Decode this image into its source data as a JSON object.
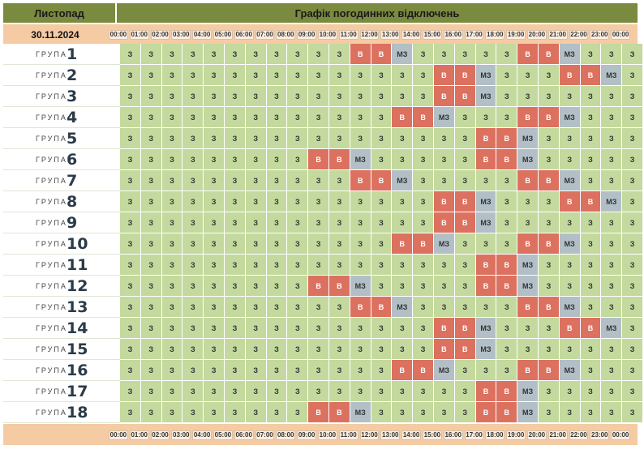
{
  "header": {
    "month": "Листопад",
    "title": "Графік погодинних відключень",
    "date": "30.11.2024"
  },
  "hours": [
    "00:00",
    "01:00",
    "02:00",
    "03:00",
    "04:00",
    "05:00",
    "06:00",
    "07:00",
    "08:00",
    "09:00",
    "10:00",
    "11:00",
    "12:00",
    "13:00",
    "14:00",
    "15:00",
    "16:00",
    "17:00",
    "18:00",
    "19:00",
    "20:00",
    "21:00",
    "22:00",
    "23:00",
    "00:00"
  ],
  "group_word": "ГРУПА",
  "legend_codes": {
    "on": "З",
    "off": "В",
    "maybe": "МЗ"
  },
  "colors": {
    "on": "#c4d99e",
    "off": "#dc7160",
    "maybe": "#b2bfc6",
    "header": "#7a8a3f",
    "band": "#f5cba3"
  },
  "groups": [
    {
      "number": "1",
      "hours": [
        "З",
        "З",
        "З",
        "З",
        "З",
        "З",
        "З",
        "З",
        "З",
        "З",
        "З",
        "В",
        "В",
        "МЗ",
        "З",
        "З",
        "З",
        "З",
        "З",
        "В",
        "В",
        "МЗ",
        "З",
        "З",
        "З"
      ]
    },
    {
      "number": "2",
      "hours": [
        "З",
        "З",
        "З",
        "З",
        "З",
        "З",
        "З",
        "З",
        "З",
        "З",
        "З",
        "З",
        "З",
        "З",
        "З",
        "В",
        "В",
        "МЗ",
        "З",
        "З",
        "З",
        "В",
        "В",
        "МЗ",
        "З"
      ]
    },
    {
      "number": "3",
      "hours": [
        "З",
        "З",
        "З",
        "З",
        "З",
        "З",
        "З",
        "З",
        "З",
        "З",
        "З",
        "З",
        "З",
        "З",
        "З",
        "В",
        "В",
        "МЗ",
        "З",
        "З",
        "З",
        "З",
        "З",
        "З",
        "З"
      ]
    },
    {
      "number": "4",
      "hours": [
        "З",
        "З",
        "З",
        "З",
        "З",
        "З",
        "З",
        "З",
        "З",
        "З",
        "З",
        "З",
        "З",
        "В",
        "В",
        "МЗ",
        "З",
        "З",
        "З",
        "В",
        "В",
        "МЗ",
        "З",
        "З",
        "З"
      ]
    },
    {
      "number": "5",
      "hours": [
        "З",
        "З",
        "З",
        "З",
        "З",
        "З",
        "З",
        "З",
        "З",
        "З",
        "З",
        "З",
        "З",
        "З",
        "З",
        "З",
        "З",
        "В",
        "В",
        "МЗ",
        "З",
        "З",
        "З",
        "З",
        "З"
      ]
    },
    {
      "number": "6",
      "hours": [
        "З",
        "З",
        "З",
        "З",
        "З",
        "З",
        "З",
        "З",
        "З",
        "В",
        "В",
        "МЗ",
        "З",
        "З",
        "З",
        "З",
        "З",
        "В",
        "В",
        "МЗ",
        "З",
        "З",
        "З",
        "З",
        "З"
      ]
    },
    {
      "number": "7",
      "hours": [
        "З",
        "З",
        "З",
        "З",
        "З",
        "З",
        "З",
        "З",
        "З",
        "З",
        "З",
        "В",
        "В",
        "МЗ",
        "З",
        "З",
        "З",
        "З",
        "З",
        "В",
        "В",
        "МЗ",
        "З",
        "З",
        "З"
      ]
    },
    {
      "number": "8",
      "hours": [
        "З",
        "З",
        "З",
        "З",
        "З",
        "З",
        "З",
        "З",
        "З",
        "З",
        "З",
        "З",
        "З",
        "З",
        "З",
        "В",
        "В",
        "МЗ",
        "З",
        "З",
        "З",
        "В",
        "В",
        "МЗ",
        "З"
      ]
    },
    {
      "number": "9",
      "hours": [
        "З",
        "З",
        "З",
        "З",
        "З",
        "З",
        "З",
        "З",
        "З",
        "З",
        "З",
        "З",
        "З",
        "З",
        "З",
        "В",
        "В",
        "МЗ",
        "З",
        "З",
        "З",
        "З",
        "З",
        "З",
        "З"
      ]
    },
    {
      "number": "10",
      "hours": [
        "З",
        "З",
        "З",
        "З",
        "З",
        "З",
        "З",
        "З",
        "З",
        "З",
        "З",
        "З",
        "З",
        "В",
        "В",
        "МЗ",
        "З",
        "З",
        "З",
        "В",
        "В",
        "МЗ",
        "З",
        "З",
        "З"
      ]
    },
    {
      "number": "11",
      "hours": [
        "З",
        "З",
        "З",
        "З",
        "З",
        "З",
        "З",
        "З",
        "З",
        "З",
        "З",
        "З",
        "З",
        "З",
        "З",
        "З",
        "З",
        "В",
        "В",
        "МЗ",
        "З",
        "З",
        "З",
        "З",
        "З"
      ]
    },
    {
      "number": "12",
      "hours": [
        "З",
        "З",
        "З",
        "З",
        "З",
        "З",
        "З",
        "З",
        "З",
        "В",
        "В",
        "МЗ",
        "З",
        "З",
        "З",
        "З",
        "З",
        "В",
        "В",
        "МЗ",
        "З",
        "З",
        "З",
        "З",
        "З"
      ]
    },
    {
      "number": "13",
      "hours": [
        "З",
        "З",
        "З",
        "З",
        "З",
        "З",
        "З",
        "З",
        "З",
        "З",
        "З",
        "В",
        "В",
        "МЗ",
        "З",
        "З",
        "З",
        "З",
        "З",
        "В",
        "В",
        "МЗ",
        "З",
        "З",
        "З"
      ]
    },
    {
      "number": "14",
      "hours": [
        "З",
        "З",
        "З",
        "З",
        "З",
        "З",
        "З",
        "З",
        "З",
        "З",
        "З",
        "З",
        "З",
        "З",
        "З",
        "В",
        "В",
        "МЗ",
        "З",
        "З",
        "З",
        "В",
        "В",
        "МЗ",
        "З"
      ]
    },
    {
      "number": "15",
      "hours": [
        "З",
        "З",
        "З",
        "З",
        "З",
        "З",
        "З",
        "З",
        "З",
        "З",
        "З",
        "З",
        "З",
        "З",
        "З",
        "В",
        "В",
        "МЗ",
        "З",
        "З",
        "З",
        "З",
        "З",
        "З",
        "З"
      ]
    },
    {
      "number": "16",
      "hours": [
        "З",
        "З",
        "З",
        "З",
        "З",
        "З",
        "З",
        "З",
        "З",
        "З",
        "З",
        "З",
        "З",
        "В",
        "В",
        "МЗ",
        "З",
        "З",
        "З",
        "В",
        "В",
        "МЗ",
        "З",
        "З",
        "З"
      ]
    },
    {
      "number": "17",
      "hours": [
        "З",
        "З",
        "З",
        "З",
        "З",
        "З",
        "З",
        "З",
        "З",
        "З",
        "З",
        "З",
        "З",
        "З",
        "З",
        "З",
        "З",
        "В",
        "В",
        "МЗ",
        "З",
        "З",
        "З",
        "З",
        "З"
      ]
    },
    {
      "number": "18",
      "hours": [
        "З",
        "З",
        "З",
        "З",
        "З",
        "З",
        "З",
        "З",
        "З",
        "В",
        "В",
        "МЗ",
        "З",
        "З",
        "З",
        "З",
        "З",
        "В",
        "В",
        "МЗ",
        "З",
        "З",
        "З",
        "З",
        "З"
      ]
    }
  ]
}
